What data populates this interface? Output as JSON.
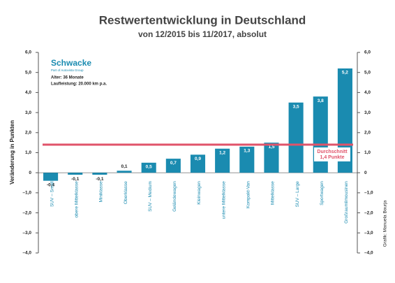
{
  "chart_data": {
    "type": "bar",
    "title": "Restwertentwicklung in Deutschland",
    "subtitle": "von 12/2015 bis 11/2017, absolut",
    "y_label": "Veränderung in Punkten",
    "categories": [
      "SUV – Small",
      "obere Mittelklasse",
      "Miniklasse",
      "Oberklasse",
      "SUV – Medium",
      "Geländewagen",
      "Kleinwagen",
      "untere Mittelklasse",
      "Kompakt-Van",
      "Mittelklasse",
      "SUV – Large",
      "Sportwagen",
      "Großraumlimousinen"
    ],
    "values": [
      -0.4,
      -0.1,
      -0.1,
      0.1,
      0.5,
      0.7,
      0.9,
      1.2,
      1.3,
      1.5,
      3.5,
      3.8,
      5.2
    ],
    "value_labels": [
      "-0,4",
      "-0,1",
      "-0,1",
      "0,1",
      "0,5",
      "0,7",
      "0,9",
      "1,2",
      "1,3",
      "1,5",
      "3,5",
      "3,8",
      "5,2"
    ],
    "color": "#1a8bb0",
    "ylim": [
      -4,
      6
    ],
    "yticks": [
      {
        "value": 6,
        "label": "6,0"
      },
      {
        "value": 5,
        "label": "5,0"
      },
      {
        "value": 4,
        "label": "4,0"
      },
      {
        "value": 3,
        "label": "3,0"
      },
      {
        "value": 2,
        "label": "2,0"
      },
      {
        "value": 1,
        "label": "1,0"
      },
      {
        "value": 0,
        "label": "0"
      },
      {
        "value": -1,
        "label": "–1,0"
      },
      {
        "value": -2,
        "label": "–2,0"
      },
      {
        "value": -3,
        "label": "–3,0"
      },
      {
        "value": -4,
        "label": "–4,0"
      }
    ],
    "reference_line": {
      "value": 1.4,
      "label": "Durchschnitt",
      "value_label": "1,4 Punkte",
      "color": "#e0536a"
    },
    "logo": {
      "name": "Schwacke",
      "tagline": "Part of Autovista Group"
    },
    "notes": [
      "Alter: 36 Monate",
      "Laufleistung: 20.000 km p.a."
    ],
    "credit": "Grafik: Manuela Bourja"
  }
}
